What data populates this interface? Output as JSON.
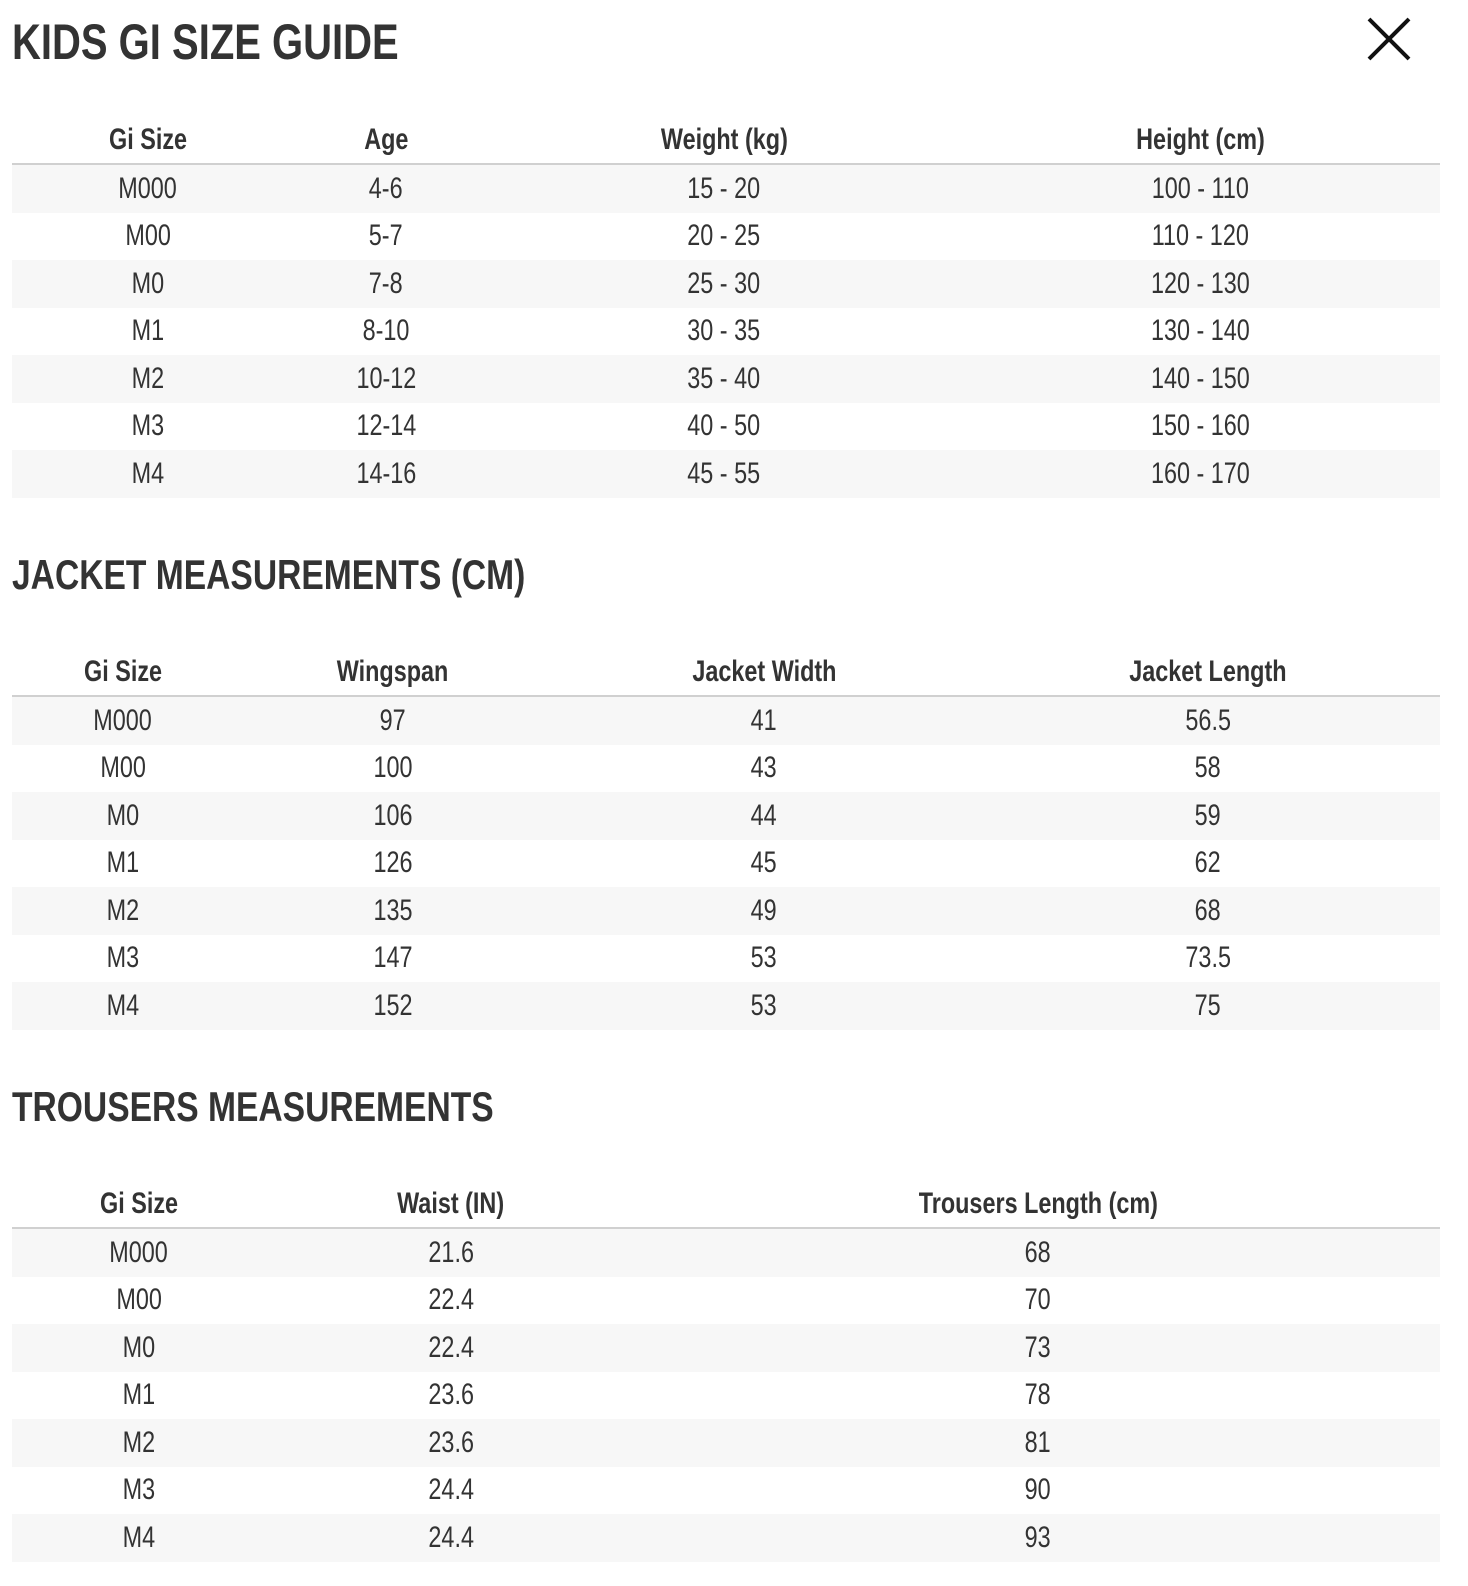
{
  "title": "KIDS GI SIZE GUIDE",
  "tables": [
    {
      "headers": [
        "Gi Size",
        "Age",
        "Weight (kg)",
        "Height (cm)"
      ],
      "rows": [
        [
          "M000",
          "4-6",
          "15 - 20",
          "100 - 110"
        ],
        [
          "M00",
          "5-7",
          "20 - 25",
          "110 - 120"
        ],
        [
          "M0",
          "7-8",
          "25 - 30",
          "120 - 130"
        ],
        [
          "M1",
          "8-10",
          "30 - 35",
          "130 - 140"
        ],
        [
          "M2",
          "10-12",
          "35 - 40",
          "140 - 150"
        ],
        [
          "M3",
          "12-14",
          "40 - 50",
          "150 - 160"
        ],
        [
          "M4",
          "14-16",
          "45 - 55",
          "160 - 170"
        ]
      ]
    },
    {
      "heading": "JACKET MEASUREMENTS (CM)",
      "headers": [
        "Gi Size",
        "Wingspan",
        "Jacket Width",
        "Jacket Length"
      ],
      "rows": [
        [
          "M000",
          "97",
          "41",
          "56.5"
        ],
        [
          "M00",
          "100",
          "43",
          "58"
        ],
        [
          "M0",
          "106",
          "44",
          "59"
        ],
        [
          "M1",
          "126",
          "45",
          "62"
        ],
        [
          "M2",
          "135",
          "49",
          "68"
        ],
        [
          "M3",
          "147",
          "53",
          "73.5"
        ],
        [
          "M4",
          "152",
          "53",
          "75"
        ]
      ]
    },
    {
      "heading": "TROUSERS MEASUREMENTS",
      "headers": [
        "Gi Size",
        "Waist (IN)",
        "Trousers Length (cm)"
      ],
      "rows": [
        [
          "M000",
          "21.6",
          "68"
        ],
        [
          "M00",
          "22.4",
          "70"
        ],
        [
          "M0",
          "22.4",
          "73"
        ],
        [
          "M1",
          "23.6",
          "78"
        ],
        [
          "M2",
          "23.6",
          "81"
        ],
        [
          "M3",
          "24.4",
          "90"
        ],
        [
          "M4",
          "24.4",
          "93"
        ]
      ]
    }
  ]
}
